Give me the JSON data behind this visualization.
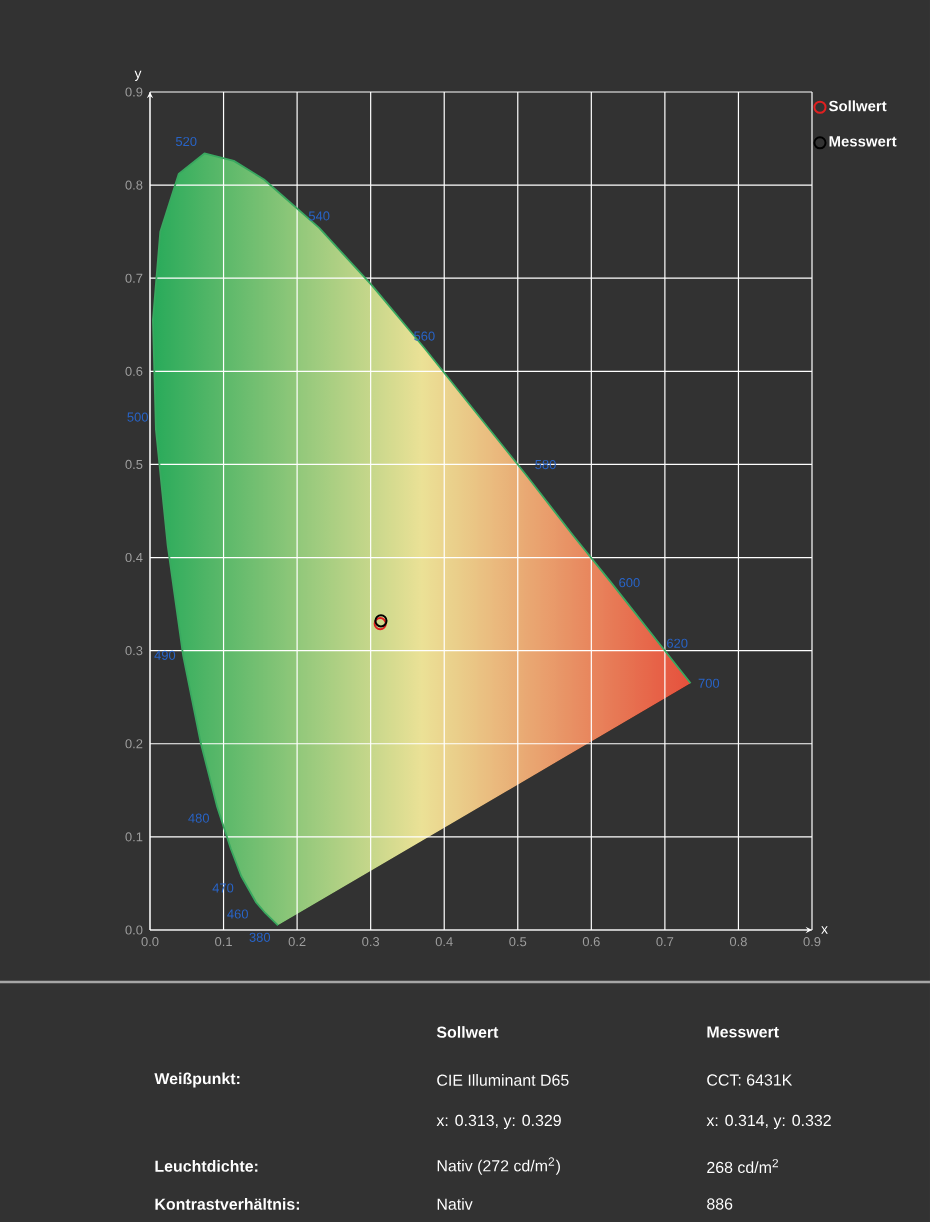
{
  "chart_data": {
    "type": "scatter",
    "xlabel": "x",
    "ylabel": "y",
    "xlim": [
      0,
      0.9
    ],
    "ylim": [
      0,
      0.9
    ],
    "xticks": [
      {
        "value": 0,
        "label": "0.0"
      },
      {
        "value": 0.1,
        "label": "0.1"
      },
      {
        "value": 0.2,
        "label": "0.2"
      },
      {
        "value": 0.3,
        "label": "0.3"
      },
      {
        "value": 0.4,
        "label": "0.4"
      },
      {
        "value": 0.5,
        "label": "0.5"
      },
      {
        "value": 0.6,
        "label": "0.6"
      },
      {
        "value": 0.7,
        "label": "0.7"
      },
      {
        "value": 0.8,
        "label": "0.8"
      },
      {
        "value": 0.9,
        "label": "0.9"
      }
    ],
    "yticks": [
      {
        "value": 0,
        "label": "0.0"
      },
      {
        "value": 0.1,
        "label": "0.1"
      },
      {
        "value": 0.2,
        "label": "0.2"
      },
      {
        "value": 0.3,
        "label": "0.3"
      },
      {
        "value": 0.4,
        "label": "0.4"
      },
      {
        "value": 0.5,
        "label": "0.5"
      },
      {
        "value": 0.6,
        "label": "0.6"
      },
      {
        "value": 0.7,
        "label": "0.7"
      },
      {
        "value": 0.8,
        "label": "0.8"
      },
      {
        "value": 0.9,
        "label": "0.9"
      }
    ],
    "grid": true,
    "legend": "top right",
    "series": [
      {
        "type": "line",
        "color": "#3aa860",
        "x": [
          0.174,
          0.157,
          0.144,
          0.124,
          0.11,
          0.091,
          0.069,
          0.045,
          0.024,
          0.008,
          0.004,
          0.014,
          0.039,
          0.074,
          0.114,
          0.155,
          0.23,
          0.302,
          0.373,
          0.444,
          0.513,
          0.575,
          0.627,
          0.692,
          0.735
        ],
        "values": [
          0.005,
          0.018,
          0.03,
          0.058,
          0.087,
          0.133,
          0.201,
          0.295,
          0.413,
          0.538,
          0.655,
          0.75,
          0.812,
          0.834,
          0.826,
          0.806,
          0.754,
          0.692,
          0.625,
          0.555,
          0.487,
          0.424,
          0.373,
          0.308,
          0.265
        ]
      },
      {
        "name": "Sollwert",
        "color": "#e02020",
        "marker": "circle",
        "x": [
          0.313
        ],
        "values": [
          0.329
        ]
      },
      {
        "name": "Messwert",
        "color": "#000000",
        "marker": "circle",
        "x": [
          0.314
        ],
        "values": [
          0.332
        ]
      }
    ],
    "annotations": [
      {
        "text": "380",
        "x": 0.174,
        "y": 0.005
      },
      {
        "text": "460",
        "x": 0.144,
        "y": 0.03
      },
      {
        "text": "470",
        "x": 0.124,
        "y": 0.058
      },
      {
        "text": "480",
        "x": 0.091,
        "y": 0.133
      },
      {
        "text": "490",
        "x": 0.045,
        "y": 0.295
      },
      {
        "text": "500",
        "x": 0.008,
        "y": 0.538
      },
      {
        "text": "520",
        "x": 0.074,
        "y": 0.834
      },
      {
        "text": "540",
        "x": 0.23,
        "y": 0.754
      },
      {
        "text": "560",
        "x": 0.373,
        "y": 0.625
      },
      {
        "text": "580",
        "x": 0.513,
        "y": 0.487
      },
      {
        "text": "600",
        "x": 0.627,
        "y": 0.373
      },
      {
        "text": "620",
        "x": 0.692,
        "y": 0.308
      },
      {
        "text": "700",
        "x": 0.735,
        "y": 0.265
      },
      "Sollwert",
      "Messwert",
      "Weißpunkt:",
      "CIE Illuminant D65",
      "CCT: 6431K",
      "x: 0.313, y: 0.329",
      "x: 0.314, y: 0.332",
      "Leuchtdichte:",
      "Nativ (272 cd/m$^{2}$)",
      "268 cd/m$^{2}$",
      "Kontrastverhältnis:",
      "Nativ",
      "886"
    ]
  }
}
